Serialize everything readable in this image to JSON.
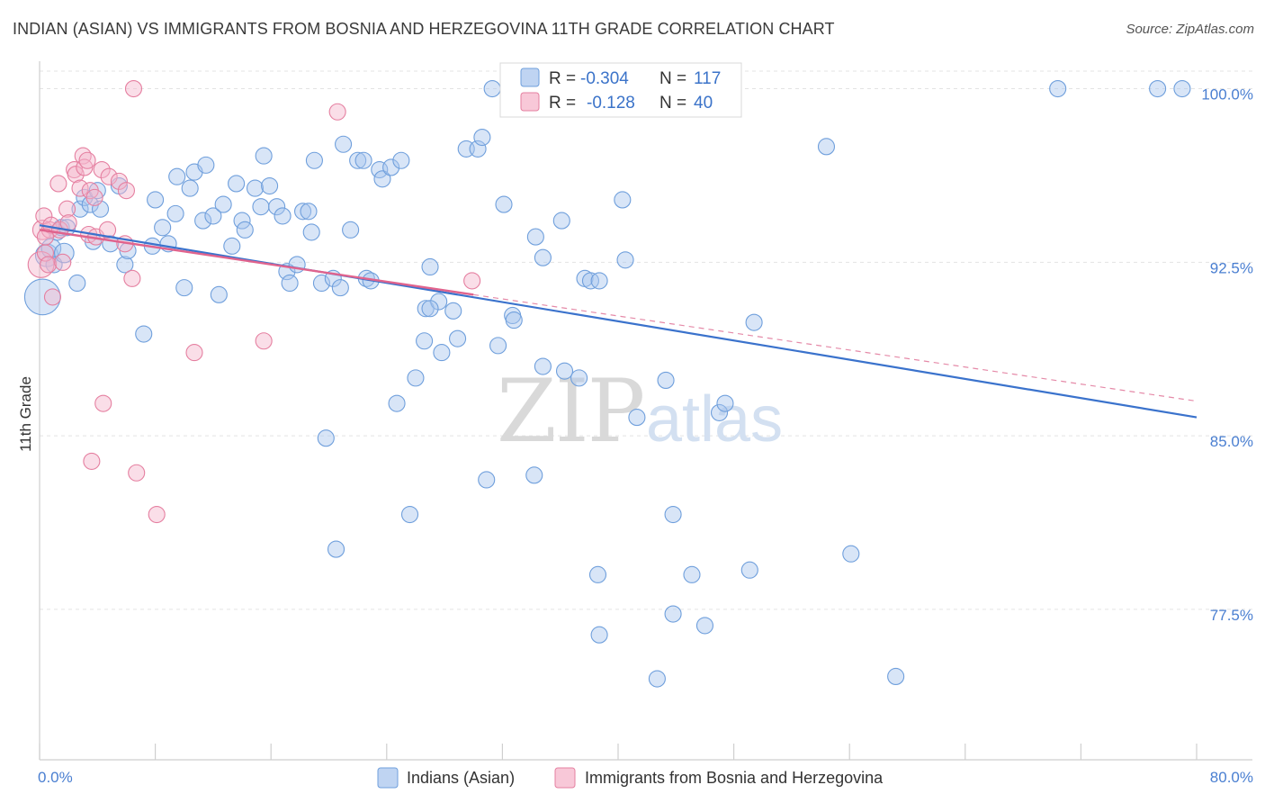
{
  "chart_data": {
    "type": "scatter",
    "title": "INDIAN (ASIAN) VS IMMIGRANTS FROM BOSNIA AND HERZEGOVINA 11TH GRADE CORRELATION CHART",
    "source": "Source: ZipAtlas.com",
    "ylabel": "11th Grade",
    "xlim": [
      0,
      80
    ],
    "ylim": [
      71.0,
      101.5
    ],
    "x_tick_labels": [
      "0.0%",
      "80.0%"
    ],
    "y_ticks": [
      {
        "value": 100.0,
        "label": "100.0%"
      },
      {
        "value": 92.5,
        "label": "92.5%"
      },
      {
        "value": 85.0,
        "label": "85.0%"
      },
      {
        "value": 77.5,
        "label": "77.5%"
      }
    ],
    "watermark": {
      "zip": "ZIP",
      "atlas": "atlas"
    },
    "stats": [
      {
        "r_label": "R =",
        "r_value": "-0.304",
        "n_label": "N =",
        "n_value": "117",
        "color": "#a9c6ee"
      },
      {
        "r_label": "R =",
        "r_value": "-0.128",
        "n_label": "N =",
        "n_value": "40",
        "color": "#f5b5cb"
      }
    ],
    "series": [
      {
        "name": "Indians (Asian)",
        "color": "#a9c6ee",
        "stroke": "#6f9fdc",
        "trend": {
          "x": [
            0,
            80
          ],
          "y": [
            94.1,
            85.8
          ],
          "color": "#3a72cc"
        },
        "points": [
          [
            0.2,
            91.0,
            2.2
          ],
          [
            0.5,
            92.8,
            1.4
          ],
          [
            0.8,
            93.1,
            1.2
          ],
          [
            1.0,
            92.4,
            1.0
          ],
          [
            1.2,
            93.8,
            1.0
          ],
          [
            1.5,
            94.0,
            1.0
          ],
          [
            1.7,
            92.9,
            1.2
          ],
          [
            1.9,
            94.0,
            1.0
          ],
          [
            2.6,
            91.6,
            1.0
          ],
          [
            2.8,
            94.8,
            1.0
          ],
          [
            3.1,
            95.3,
            1.0
          ],
          [
            3.5,
            95.0,
            1.0
          ],
          [
            3.7,
            93.4,
            1.0
          ],
          [
            4.0,
            95.6,
            1.0
          ],
          [
            4.2,
            94.8,
            1.0
          ],
          [
            4.9,
            93.3,
            1.0
          ],
          [
            5.5,
            95.8,
            1.0
          ],
          [
            5.9,
            92.4,
            1.0
          ],
          [
            6.1,
            93.0,
            1.0
          ],
          [
            7.2,
            89.4,
            1.0
          ],
          [
            7.8,
            93.2,
            1.0
          ],
          [
            8.0,
            95.2,
            1.0
          ],
          [
            8.5,
            94.0,
            1.0
          ],
          [
            8.9,
            93.3,
            1.0
          ],
          [
            9.4,
            94.6,
            1.0
          ],
          [
            9.5,
            96.2,
            1.0
          ],
          [
            10.0,
            91.4,
            1.0
          ],
          [
            10.4,
            95.7,
            1.0
          ],
          [
            10.7,
            96.4,
            1.0
          ],
          [
            11.3,
            94.3,
            1.0
          ],
          [
            11.5,
            96.7,
            1.0
          ],
          [
            12.0,
            94.5,
            1.0
          ],
          [
            12.4,
            91.1,
            1.0
          ],
          [
            12.7,
            95.0,
            1.0
          ],
          [
            13.3,
            93.2,
            1.0
          ],
          [
            13.6,
            95.9,
            1.0
          ],
          [
            14.0,
            94.3,
            1.0
          ],
          [
            14.2,
            93.9,
            1.0
          ],
          [
            14.9,
            95.7,
            1.0
          ],
          [
            15.3,
            94.9,
            1.0
          ],
          [
            15.5,
            97.1,
            1.0
          ],
          [
            15.9,
            95.8,
            1.0
          ],
          [
            16.4,
            94.9,
            1.0
          ],
          [
            16.8,
            94.5,
            1.0
          ],
          [
            17.1,
            92.1,
            1.0
          ],
          [
            17.3,
            91.6,
            1.0
          ],
          [
            17.8,
            92.4,
            1.0
          ],
          [
            18.2,
            94.7,
            1.0
          ],
          [
            18.6,
            94.7,
            1.0
          ],
          [
            18.8,
            93.8,
            1.0
          ],
          [
            19.0,
            96.9,
            1.0
          ],
          [
            19.5,
            91.6,
            1.0
          ],
          [
            20.3,
            91.8,
            1.0
          ],
          [
            20.8,
            91.4,
            1.0
          ],
          [
            21.0,
            97.6,
            1.0
          ],
          [
            21.5,
            93.9,
            1.0
          ],
          [
            22.0,
            96.9,
            1.0
          ],
          [
            22.4,
            96.9,
            1.0
          ],
          [
            22.6,
            91.8,
            1.0
          ],
          [
            22.9,
            91.7,
            1.0
          ],
          [
            23.5,
            96.5,
            1.0
          ],
          [
            23.7,
            96.1,
            1.0
          ],
          [
            24.3,
            96.6,
            1.0
          ],
          [
            25.0,
            96.9,
            1.0
          ],
          [
            24.7,
            86.4,
            1.0
          ],
          [
            25.6,
            81.6,
            1.0
          ],
          [
            26.0,
            87.5,
            1.0
          ],
          [
            26.6,
            89.1,
            1.0
          ],
          [
            26.7,
            90.5,
            1.0
          ],
          [
            27.0,
            92.3,
            1.0
          ],
          [
            27.6,
            90.8,
            1.0
          ],
          [
            27.8,
            88.6,
            1.0
          ],
          [
            28.6,
            90.4,
            1.0
          ],
          [
            28.9,
            89.2,
            1.0
          ],
          [
            29.5,
            97.4,
            1.0
          ],
          [
            30.3,
            97.4,
            1.0
          ],
          [
            30.6,
            97.9,
            1.0
          ],
          [
            30.9,
            83.1,
            1.0
          ],
          [
            31.3,
            100.0,
            1.0
          ],
          [
            31.7,
            88.9,
            1.0
          ],
          [
            32.1,
            95.0,
            1.0
          ],
          [
            32.7,
            90.2,
            1.0
          ],
          [
            32.8,
            90.0,
            1.0
          ],
          [
            34.2,
            83.3,
            1.0
          ],
          [
            34.3,
            93.6,
            1.0
          ],
          [
            34.8,
            92.7,
            1.0
          ],
          [
            36.1,
            94.3,
            1.0
          ],
          [
            36.3,
            87.8,
            1.0
          ],
          [
            37.3,
            87.5,
            1.0
          ],
          [
            37.7,
            91.8,
            1.0
          ],
          [
            38.1,
            91.7,
            1.0
          ],
          [
            38.6,
            79.0,
            1.0
          ],
          [
            38.7,
            91.7,
            1.0
          ],
          [
            38.7,
            76.4,
            1.0
          ],
          [
            40.3,
            95.2,
            1.0
          ],
          [
            40.5,
            92.6,
            1.0
          ],
          [
            41.3,
            85.8,
            1.0
          ],
          [
            42.7,
            74.5,
            1.0
          ],
          [
            43.3,
            87.4,
            1.0
          ],
          [
            43.8,
            81.6,
            1.0
          ],
          [
            43.8,
            77.3,
            1.0
          ],
          [
            45.1,
            79.0,
            1.0
          ],
          [
            46.0,
            76.8,
            1.0
          ],
          [
            47.0,
            86.0,
            1.0
          ],
          [
            47.4,
            86.4,
            1.0
          ],
          [
            49.1,
            79.2,
            1.0
          ],
          [
            49.4,
            89.9,
            1.0
          ],
          [
            54.4,
            97.5,
            1.0
          ],
          [
            56.1,
            79.9,
            1.0
          ],
          [
            59.2,
            74.6,
            1.0
          ],
          [
            70.4,
            100.0,
            1.0
          ],
          [
            77.3,
            100.0,
            1.0
          ],
          [
            79.0,
            100.0,
            1.0
          ],
          [
            27.0,
            90.5,
            1.0
          ],
          [
            19.8,
            84.9,
            1.0
          ],
          [
            20.5,
            80.1,
            1.0
          ],
          [
            34.8,
            88.0,
            1.0
          ]
        ]
      },
      {
        "name": "Immigrants from Bosnia and Herzegovina",
        "color": "#f5b5cb",
        "stroke": "#e57fa0",
        "trend": {
          "x": [
            0,
            30
          ],
          "y": [
            93.9,
            91.1
          ],
          "color": "#e0638d"
        },
        "dashed_extension": {
          "x": [
            30,
            80
          ],
          "y": [
            91.1,
            86.5
          ],
          "color": "#e58aa8"
        },
        "points": [
          [
            0.1,
            92.4,
            1.6
          ],
          [
            0.2,
            93.9,
            1.2
          ],
          [
            0.3,
            94.5,
            1.0
          ],
          [
            0.4,
            92.9,
            1.0
          ],
          [
            0.6,
            92.4,
            1.0
          ],
          [
            0.7,
            93.9,
            1.0
          ],
          [
            0.8,
            94.1,
            1.0
          ],
          [
            0.9,
            91.0,
            1.0
          ],
          [
            1.3,
            95.9,
            1.0
          ],
          [
            1.4,
            93.9,
            1.0
          ],
          [
            1.6,
            92.5,
            1.0
          ],
          [
            1.9,
            94.8,
            1.0
          ],
          [
            2.0,
            94.2,
            1.0
          ],
          [
            2.4,
            96.5,
            1.0
          ],
          [
            2.5,
            96.3,
            1.0
          ],
          [
            2.8,
            95.7,
            1.0
          ],
          [
            3.0,
            97.1,
            1.0
          ],
          [
            3.1,
            96.6,
            1.0
          ],
          [
            3.3,
            96.9,
            1.0
          ],
          [
            3.4,
            93.7,
            1.0
          ],
          [
            3.5,
            95.6,
            1.0
          ],
          [
            3.8,
            95.3,
            1.0
          ],
          [
            3.9,
            93.6,
            1.0
          ],
          [
            4.3,
            96.5,
            1.0
          ],
          [
            4.4,
            86.4,
            1.0
          ],
          [
            4.7,
            93.9,
            1.0
          ],
          [
            4.8,
            96.2,
            1.0
          ],
          [
            5.5,
            96.0,
            1.0
          ],
          [
            5.9,
            93.3,
            1.0
          ],
          [
            6.0,
            95.6,
            1.0
          ],
          [
            6.4,
            91.8,
            1.0
          ],
          [
            3.6,
            83.9,
            1.0
          ],
          [
            6.7,
            83.4,
            1.0
          ],
          [
            8.1,
            81.6,
            1.0
          ],
          [
            10.7,
            88.6,
            1.0
          ],
          [
            15.5,
            89.1,
            1.0
          ],
          [
            20.6,
            99.0,
            1.0
          ],
          [
            29.9,
            91.7,
            1.0
          ],
          [
            6.5,
            100.0,
            1.0
          ],
          [
            0.4,
            93.6,
            1.0
          ]
        ]
      }
    ]
  }
}
